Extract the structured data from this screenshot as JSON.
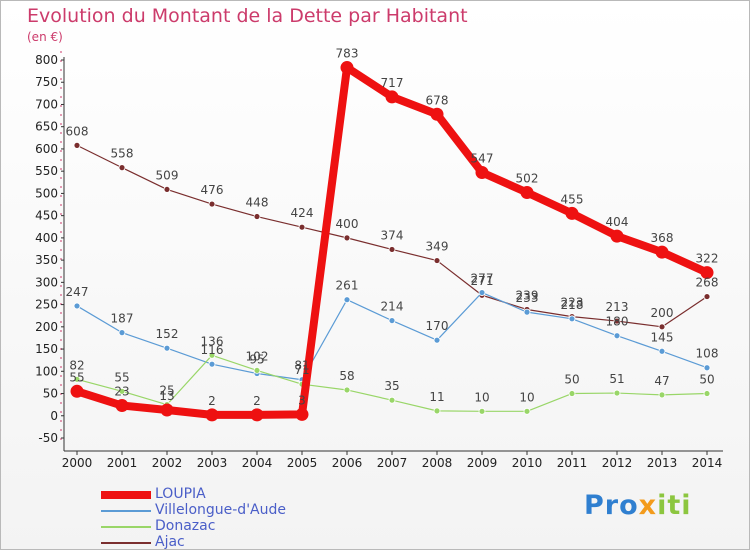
{
  "chart_data": {
    "type": "line",
    "title": "Evolution du Montant de la Dette par Habitant",
    "unit_label": "(en €)",
    "x": [
      "2000",
      "2001",
      "2002",
      "2003",
      "2004",
      "2005",
      "2006",
      "2007",
      "2008",
      "2009",
      "2010",
      "2011",
      "2012",
      "2013",
      "2014"
    ],
    "yticks": [
      "-50",
      "0",
      "50",
      "100",
      "150",
      "200",
      "250",
      "300",
      "350",
      "400",
      "450",
      "500",
      "550",
      "600",
      "650",
      "700",
      "750",
      "800"
    ],
    "ylim": [
      -50,
      800
    ],
    "grid": false,
    "legend_position": "bottom-left",
    "series": [
      {
        "name": "LOUPIA",
        "color": "#ee1111",
        "values": [
          55,
          23,
          13,
          2,
          2,
          3,
          783,
          717,
          678,
          547,
          502,
          455,
          404,
          368,
          322
        ]
      },
      {
        "name": "Villelongue-d'Aude",
        "color": "#5b9bd5",
        "values": [
          247,
          187,
          152,
          116,
          95,
          81,
          261,
          214,
          170,
          277,
          233,
          218,
          180,
          145,
          108
        ]
      },
      {
        "name": "Donazac",
        "color": "#99d668",
        "values": [
          82,
          55,
          25,
          136,
          102,
          71,
          58,
          35,
          11,
          10,
          10,
          50,
          51,
          47,
          50
        ]
      },
      {
        "name": "Ajac",
        "color": "#7a2e2e",
        "values": [
          608,
          558,
          509,
          476,
          448,
          424,
          400,
          374,
          349,
          271,
          239,
          223,
          213,
          200,
          268
        ]
      }
    ]
  },
  "logo": {
    "p1": "Pro",
    "p2": "x",
    "p3": "iti"
  }
}
